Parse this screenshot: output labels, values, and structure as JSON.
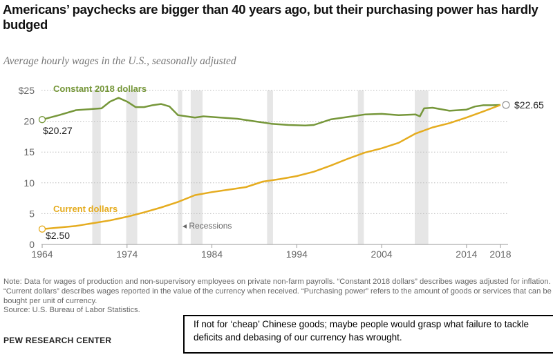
{
  "title": "Americans’ paychecks are bigger than 40 years ago, but their purchasing power has hardly budged",
  "subtitle": "Average hourly wages in the U.S., seasonally adjusted",
  "note": "Note: Data for wages of production and non-supervisory employees on private non-farm payrolls. “Constant 2018 dollars” describes wages adjusted for inflation. “Current dollars” describes wages reported in the value of the currency when received. “Purchasing power” refers to the amount of goods or services that can be bought per unit of currency.",
  "source": "Source: U.S. Bureau of Labor Statistics.",
  "brand": "PEW RESEARCH CENTER",
  "comment": "If not for ‘cheap’ Chinese goods; maybe people would grasp what failure to tackle deficits and debasing of our currency has wrought.",
  "chart_data": {
    "type": "line",
    "xlim": [
      1964,
      2018
    ],
    "ylim": [
      0,
      25
    ],
    "xticks": [
      1964,
      1974,
      1984,
      1994,
      2004,
      2014,
      2018
    ],
    "yticks": [
      0,
      5,
      10,
      15,
      20,
      25
    ],
    "ytick_labels": [
      "0",
      "5",
      "10",
      "15",
      "20",
      "$25"
    ],
    "grid": "horizontal dotted",
    "recessions": [
      [
        1969.9,
        1970.9
      ],
      [
        1973.9,
        1975.2
      ],
      [
        1980.0,
        1980.5
      ],
      [
        1981.5,
        1982.9
      ],
      [
        1990.5,
        1991.2
      ],
      [
        2001.2,
        2001.9
      ],
      [
        2007.9,
        2009.5
      ]
    ],
    "recession_label": "◂ Recessions",
    "series": [
      {
        "name": "Constant 2018 dollars",
        "color": "#76973a",
        "x": [
          1964,
          1966,
          1968,
          1970,
          1971,
          1972,
          1973,
          1974,
          1975,
          1976,
          1977,
          1978,
          1979,
          1980,
          1981,
          1982,
          1983,
          1985,
          1987,
          1989,
          1991,
          1993,
          1995,
          1996,
          1998,
          2000,
          2002,
          2004,
          2006,
          2008,
          2008.5,
          2009,
          2010,
          2012,
          2014,
          2015,
          2016,
          2017,
          2018
        ],
        "y": [
          20.27,
          21,
          21.8,
          22.0,
          22.1,
          23.2,
          23.8,
          23.2,
          22.3,
          22.3,
          22.6,
          22.8,
          22.4,
          21.0,
          20.8,
          20.6,
          20.8,
          20.6,
          20.4,
          20.0,
          19.6,
          19.4,
          19.3,
          19.4,
          20.3,
          20.7,
          21.1,
          21.2,
          21.0,
          21.1,
          20.8,
          22.1,
          22.2,
          21.7,
          21.9,
          22.4,
          22.6,
          22.6,
          22.65
        ],
        "start_label": "$20.27",
        "end_label": "$22.65"
      },
      {
        "name": "Current dollars",
        "color": "#e5ac1f",
        "x": [
          1964,
          1968,
          1972,
          1974,
          1976,
          1978,
          1980,
          1982,
          1984,
          1986,
          1988,
          1990,
          1992,
          1994,
          1996,
          1998,
          2000,
          2002,
          2004,
          2006,
          2008,
          2010,
          2012,
          2014,
          2016,
          2018
        ],
        "y": [
          2.5,
          3.0,
          3.9,
          4.5,
          5.2,
          6.0,
          6.9,
          8.0,
          8.5,
          8.9,
          9.3,
          10.2,
          10.6,
          11.1,
          11.8,
          12.8,
          13.9,
          14.9,
          15.6,
          16.5,
          18.0,
          19.0,
          19.7,
          20.6,
          21.6,
          22.65
        ],
        "start_label": "$2.50"
      }
    ]
  }
}
